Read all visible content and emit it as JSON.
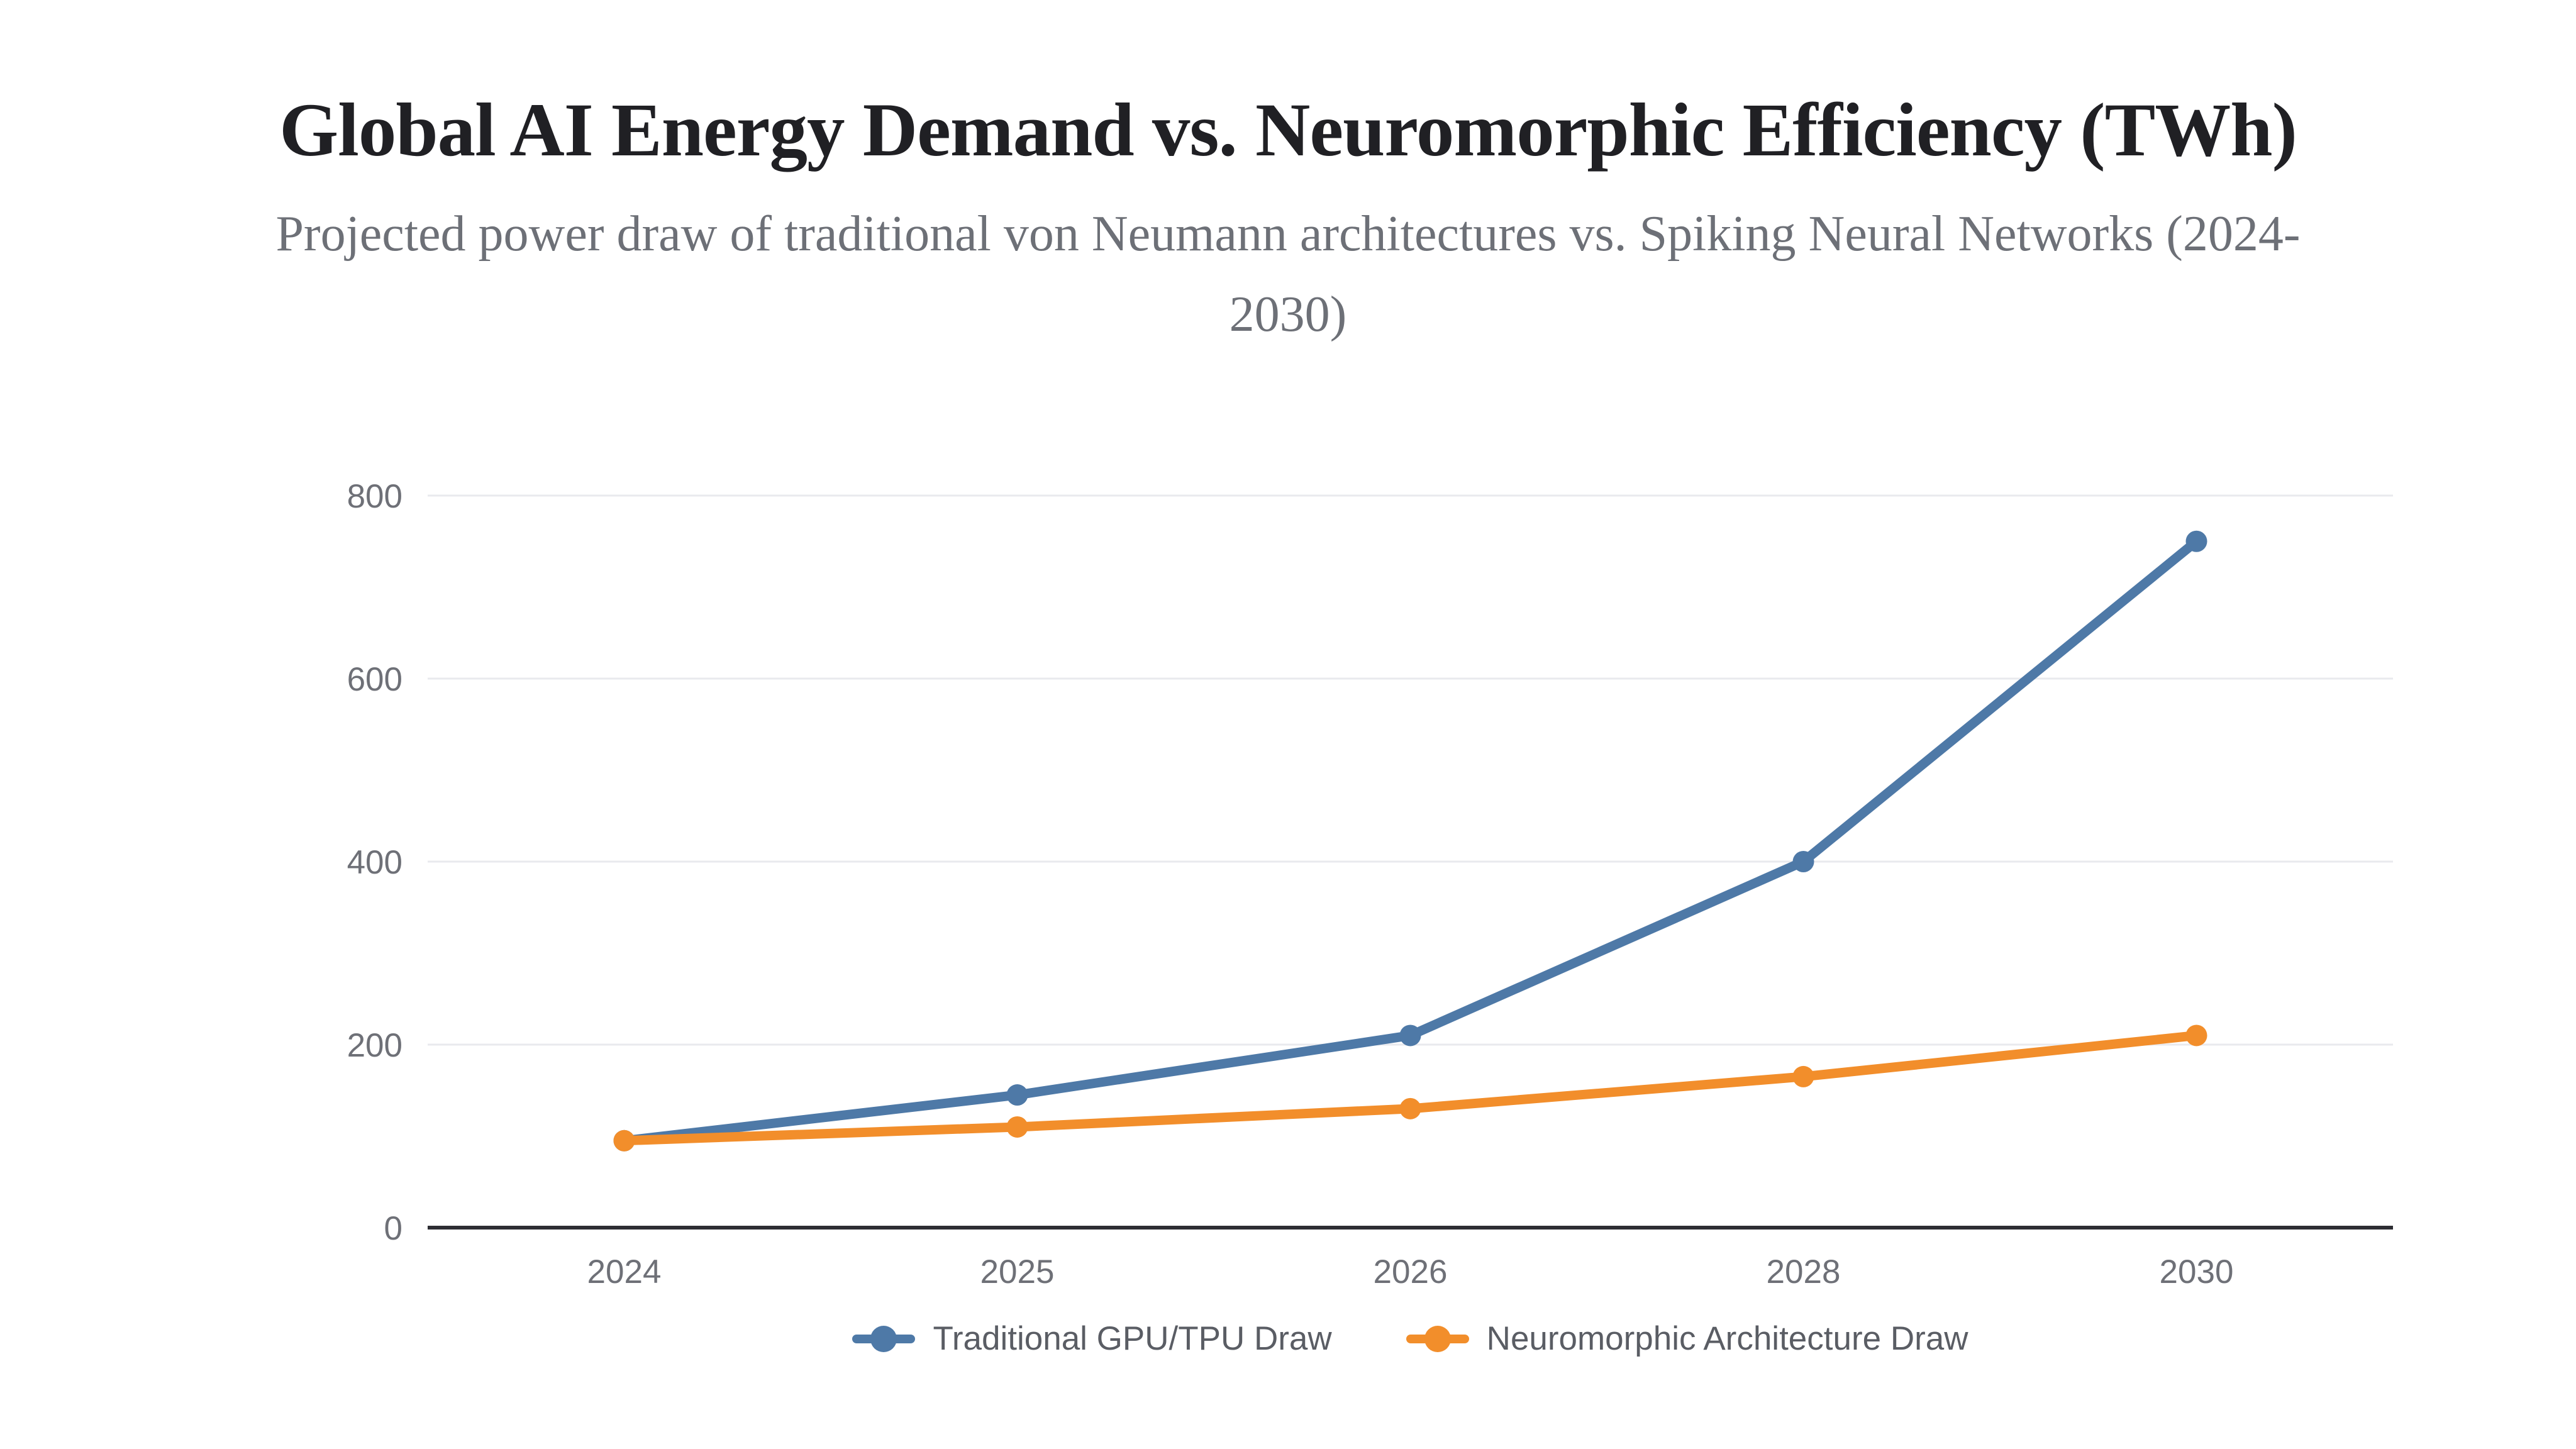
{
  "page": {
    "title": "Global AI Energy Demand vs. Neuromorphic Efficiency (TWh)",
    "subtitle_lines": [
      "Projected power draw of traditional von Neumann architectures vs. Spiking Neural Networks (2024-",
      "2030)"
    ]
  },
  "chart_data": {
    "type": "line",
    "title": "Global AI Energy Demand vs. Neuromorphic Efficiency (TWh)",
    "subtitle": "Projected power draw of traditional von Neumann architectures vs. Spiking Neural Networks (2024-2030)",
    "unit": "TWh",
    "categories": [
      "2024",
      "2025",
      "2026",
      "2028",
      "2030"
    ],
    "series": [
      {
        "name": "Traditional GPU/TPU Draw",
        "color": "#4e79a7",
        "values": [
          95,
          145,
          210,
          400,
          750
        ]
      },
      {
        "name": "Neuromorphic Architecture Draw",
        "color": "#f28e2b",
        "values": [
          95,
          110,
          130,
          165,
          210
        ]
      }
    ],
    "xlabel": "",
    "ylabel": "",
    "ylim": [
      0,
      800
    ],
    "yticks": [
      0,
      200,
      400,
      600,
      800
    ],
    "grid": true,
    "legend_position": "bottom",
    "colors": {
      "axis_line": "#2d2d33",
      "gridline": "#e9eaee",
      "tick_label": "#6e7077",
      "background": "#ffffff"
    }
  }
}
